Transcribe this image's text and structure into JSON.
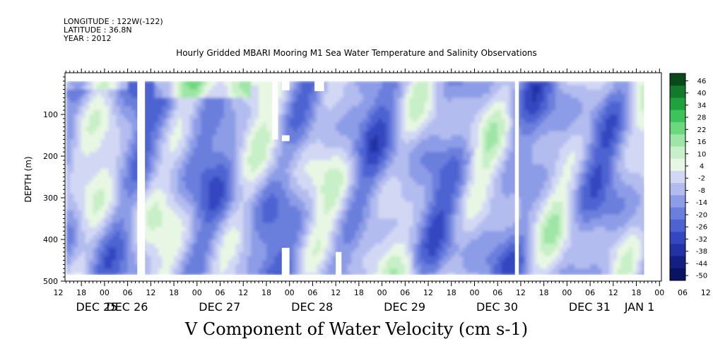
{
  "header": {
    "longitude": "LONGITUDE : 122W(-122)",
    "latitude": "LATITUDE : 36.8N",
    "year": "YEAR : 2012"
  },
  "chart_data": {
    "type": "heatmap",
    "title": "Hourly Gridded MBARI Mooring M1 Sea Water Temperature and Salinity Observations",
    "xlabel": "V Component of Water Velocity (cm s-1)",
    "ylabel": "DEPTH (m)",
    "ylim": [
      500,
      0
    ],
    "yticks": [
      100,
      200,
      300,
      400,
      500
    ],
    "hour_ticks": [
      "12",
      "18",
      "00",
      "06",
      "12",
      "18",
      "00",
      "06",
      "12",
      "18",
      "00",
      "06",
      "12",
      "18",
      "00",
      "06",
      "12",
      "18",
      "00",
      "06",
      "12",
      "18",
      "00",
      "06",
      "12",
      "18",
      "00",
      "06",
      "12",
      "18",
      "00",
      "06"
    ],
    "date_labels": [
      "DEC 25",
      "DEC 26",
      "DEC 27",
      "DEC 28",
      "DEC 29",
      "DEC 30",
      "DEC 31",
      "JAN  1"
    ],
    "colorbar": {
      "labels": [
        "46",
        "40",
        "34",
        "28",
        "22",
        "16",
        "10",
        "4",
        "-2",
        "-8",
        "-14",
        "-20",
        "-26",
        "-32",
        "-38",
        "-44",
        "-50"
      ],
      "colors": [
        "#0a4a1a",
        "#127a2a",
        "#1fa23c",
        "#3cc35a",
        "#6cd87e",
        "#9ee6a6",
        "#c8f0c8",
        "#e8f7e4",
        "#d2d8f4",
        "#b2bcee",
        "#8d9ce6",
        "#6a7edc",
        "#4d63d2",
        "#3447c0",
        "#2231a4",
        "#141f82",
        "#0a1262"
      ]
    }
  }
}
